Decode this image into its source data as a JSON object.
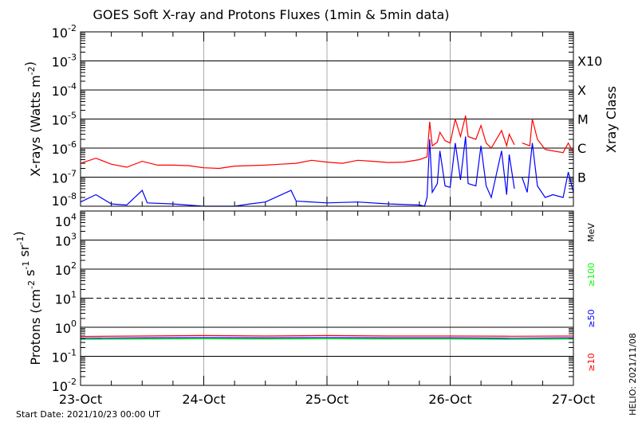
{
  "chart_data": [
    {
      "type": "line",
      "title": "GOES Soft X-ray and Protons Fluxes   (1min & 5min data)",
      "ylabel": "X-rays (Watts m^-2)",
      "y_scale": "log",
      "ylim": [
        1e-08,
        0.01
      ],
      "y_ticks": [
        "10^-2",
        "10^-3",
        "10^-4",
        "10^-5",
        "10^-6",
        "10^-7",
        "10^-8"
      ],
      "right_axis_label": "Xray Class",
      "right_ticks": [
        {
          "label": "X10",
          "value": 0.001
        },
        {
          "label": "X",
          "value": 0.0001
        },
        {
          "label": "M",
          "value": 1e-05
        },
        {
          "label": "C",
          "value": 1e-06
        },
        {
          "label": "B",
          "value": 1e-07
        }
      ],
      "grid": "horizontal at decades, vertical gray at day boundaries",
      "series": [
        {
          "color": "#ff0000",
          "points": [
            [
              "2021-10-23 00:00",
              3e-07
            ],
            [
              "2021-10-23 03:00",
              4.5e-07
            ],
            [
              "2021-10-23 06:00",
              2.8e-07
            ],
            [
              "2021-10-23 09:00",
              2.2e-07
            ],
            [
              "2021-10-23 12:00",
              3.5e-07
            ],
            [
              "2021-10-23 15:00",
              2.6e-07
            ],
            [
              "2021-10-23 18:00",
              2.6e-07
            ],
            [
              "2021-10-23 21:00",
              2.5e-07
            ],
            [
              "2021-10-24 00:00",
              2.1e-07
            ],
            [
              "2021-10-24 03:00",
              2e-07
            ],
            [
              "2021-10-24 06:00",
              2.4e-07
            ],
            [
              "2021-10-24 09:00",
              2.5e-07
            ],
            [
              "2021-10-24 12:00",
              2.6e-07
            ],
            [
              "2021-10-24 15:00",
              2.8e-07
            ],
            [
              "2021-10-24 18:00",
              3e-07
            ],
            [
              "2021-10-24 21:00",
              3.8e-07
            ],
            [
              "2021-10-25 00:00",
              3.3e-07
            ],
            [
              "2021-10-25 03:00",
              3e-07
            ],
            [
              "2021-10-25 06:00",
              3.8e-07
            ],
            [
              "2021-10-25 09:00",
              3.5e-07
            ],
            [
              "2021-10-25 12:00",
              3.2e-07
            ],
            [
              "2021-10-25 15:00",
              3.3e-07
            ],
            [
              "2021-10-25 18:00",
              4e-07
            ],
            [
              "2021-10-25 19:30",
              5e-07
            ],
            [
              "2021-10-25 20:00",
              8e-06
            ],
            [
              "2021-10-25 20:30",
              1.2e-06
            ],
            [
              "2021-10-25 21:30",
              1.6e-06
            ],
            [
              "2021-10-25 22:00",
              3.5e-06
            ],
            [
              "2021-10-25 23:00",
              1.8e-06
            ],
            [
              "2021-10-26 00:00",
              1.5e-06
            ],
            [
              "2021-10-26 01:00",
              1e-05
            ],
            [
              "2021-10-26 02:00",
              2.5e-06
            ],
            [
              "2021-10-26 03:00",
              1.3e-05
            ],
            [
              "2021-10-26 03:30",
              2.5e-06
            ],
            [
              "2021-10-26 05:00",
              2e-06
            ],
            [
              "2021-10-26 06:00",
              6e-06
            ],
            [
              "2021-10-26 07:00",
              1.5e-06
            ],
            [
              "2021-10-26 08:00",
              1e-06
            ],
            [
              "2021-10-26 10:00",
              4e-06
            ],
            [
              "2021-10-26 11:00",
              1.2e-06
            ],
            [
              "2021-10-26 11:30",
              3e-06
            ],
            [
              "2021-10-26 12:30",
              1.3e-06
            ],
            [
              "2021-10-26 13:00",
              null
            ],
            [
              "2021-10-26 14:00",
              1.5e-06
            ],
            [
              "2021-10-26 15:30",
              1.2e-06
            ],
            [
              "2021-10-26 16:00",
              1e-05
            ],
            [
              "2021-10-26 17:00",
              2e-06
            ],
            [
              "2021-10-26 18:30",
              9e-07
            ],
            [
              "2021-10-26 20:00",
              8e-07
            ],
            [
              "2021-10-26 22:00",
              7e-07
            ],
            [
              "2021-10-26 23:00",
              1.5e-06
            ],
            [
              "2021-10-27 00:00",
              7e-07
            ]
          ]
        },
        {
          "color": "#0000ff",
          "points": [
            [
              "2021-10-23 00:00",
              1.4e-08
            ],
            [
              "2021-10-23 03:00",
              2.5e-08
            ],
            [
              "2021-10-23 06:00",
              1.2e-08
            ],
            [
              "2021-10-23 09:00",
              1.1e-08
            ],
            [
              "2021-10-23 12:00",
              3.5e-08
            ],
            [
              "2021-10-23 13:00",
              1.3e-08
            ],
            [
              "2021-10-23 18:00",
              1.2e-08
            ],
            [
              "2021-10-24 00:00",
              1e-08
            ],
            [
              "2021-10-24 06:00",
              1e-08
            ],
            [
              "2021-10-24 09:00",
              1.2e-08
            ],
            [
              "2021-10-24 12:00",
              1.4e-08
            ],
            [
              "2021-10-24 17:00",
              3.5e-08
            ],
            [
              "2021-10-24 18:00",
              1.5e-08
            ],
            [
              "2021-10-25 00:00",
              1.3e-08
            ],
            [
              "2021-10-25 06:00",
              1.4e-08
            ],
            [
              "2021-10-25 12:00",
              1.2e-08
            ],
            [
              "2021-10-25 18:00",
              1.1e-08
            ],
            [
              "2021-10-25 19:00",
              1e-08
            ],
            [
              "2021-10-25 19:30",
              2e-08
            ],
            [
              "2021-10-25 20:00",
              2e-06
            ],
            [
              "2021-10-25 20:30",
              3e-08
            ],
            [
              "2021-10-25 21:30",
              6e-08
            ],
            [
              "2021-10-25 22:00",
              8e-07
            ],
            [
              "2021-10-25 23:00",
              5e-08
            ],
            [
              "2021-10-26 00:00",
              4.5e-08
            ],
            [
              "2021-10-26 01:00",
              1.5e-06
            ],
            [
              "2021-10-26 02:00",
              8e-08
            ],
            [
              "2021-10-26 03:00",
              2.5e-06
            ],
            [
              "2021-10-26 03:30",
              6e-08
            ],
            [
              "2021-10-26 05:00",
              5e-08
            ],
            [
              "2021-10-26 06:00",
              1.2e-06
            ],
            [
              "2021-10-26 07:00",
              5e-08
            ],
            [
              "2021-10-26 08:00",
              2e-08
            ],
            [
              "2021-10-26 10:00",
              8e-07
            ],
            [
              "2021-10-26 11:00",
              2.5e-08
            ],
            [
              "2021-10-26 11:30",
              6e-07
            ],
            [
              "2021-10-26 12:30",
              4e-08
            ],
            [
              "2021-10-26 13:00",
              null
            ],
            [
              "2021-10-26 14:00",
              1e-07
            ],
            [
              "2021-10-26 15:00",
              3e-08
            ],
            [
              "2021-10-26 16:00",
              1.5e-06
            ],
            [
              "2021-10-26 17:00",
              5e-08
            ],
            [
              "2021-10-26 18:30",
              2e-08
            ],
            [
              "2021-10-26 20:00",
              2.5e-08
            ],
            [
              "2021-10-26 22:00",
              2e-08
            ],
            [
              "2021-10-26 23:00",
              1.5e-07
            ],
            [
              "2021-10-27 00:00",
              3e-08
            ]
          ]
        }
      ]
    },
    {
      "type": "line",
      "ylabel": "Protons (cm^-2 s^-1 sr^-1)",
      "y_scale": "log",
      "ylim": [
        0.01,
        10000.0
      ],
      "y_ticks": [
        "10^4",
        "10^3",
        "10^2",
        "10^1",
        "10^0",
        "10^-1",
        "10^-2"
      ],
      "dashed_threshold": 10,
      "unit_label": "MeV",
      "x_ticks": [
        "23-Oct",
        "24-Oct",
        "25-Oct",
        "26-Oct",
        "27-Oct"
      ],
      "xlim": [
        "2021-10-23 00:00",
        "2021-10-27 00:00"
      ],
      "series": [
        {
          "name": "≥10",
          "color": "#ff0000",
          "points": [
            [
              "2021-10-23 00:00",
              0.48
            ],
            [
              "2021-10-23 12:00",
              0.5
            ],
            [
              "2021-10-24 00:00",
              0.52
            ],
            [
              "2021-10-24 12:00",
              0.5
            ],
            [
              "2021-10-25 00:00",
              0.52
            ],
            [
              "2021-10-25 12:00",
              0.5
            ],
            [
              "2021-10-26 00:00",
              0.5
            ],
            [
              "2021-10-26 12:00",
              0.49
            ],
            [
              "2021-10-27 00:00",
              0.5
            ]
          ]
        },
        {
          "name": "≥50",
          "color": "#0000ff",
          "points": [
            [
              "2021-10-23 00:00",
              0.42
            ],
            [
              "2021-10-23 12:00",
              0.43
            ],
            [
              "2021-10-24 00:00",
              0.44
            ],
            [
              "2021-10-24 12:00",
              0.43
            ],
            [
              "2021-10-25 00:00",
              0.44
            ],
            [
              "2021-10-25 12:00",
              0.43
            ],
            [
              "2021-10-26 00:00",
              0.43
            ],
            [
              "2021-10-26 12:00",
              0.42
            ],
            [
              "2021-10-27 00:00",
              0.43
            ]
          ]
        },
        {
          "name": "≥100",
          "color": "#00ff00",
          "points": [
            [
              "2021-10-23 00:00",
              0.38
            ],
            [
              "2021-10-23 12:00",
              0.39
            ],
            [
              "2021-10-24 00:00",
              0.4
            ],
            [
              "2021-10-24 12:00",
              0.39
            ],
            [
              "2021-10-25 00:00",
              0.4
            ],
            [
              "2021-10-25 12:00",
              0.39
            ],
            [
              "2021-10-26 00:00",
              0.39
            ],
            [
              "2021-10-26 12:00",
              0.38
            ],
            [
              "2021-10-27 00:00",
              0.39
            ]
          ]
        }
      ]
    }
  ],
  "footer": {
    "start_date": "Start Date: 2021/10/23 00:00 UT",
    "credit": "HELIO: 2021/11/08"
  }
}
